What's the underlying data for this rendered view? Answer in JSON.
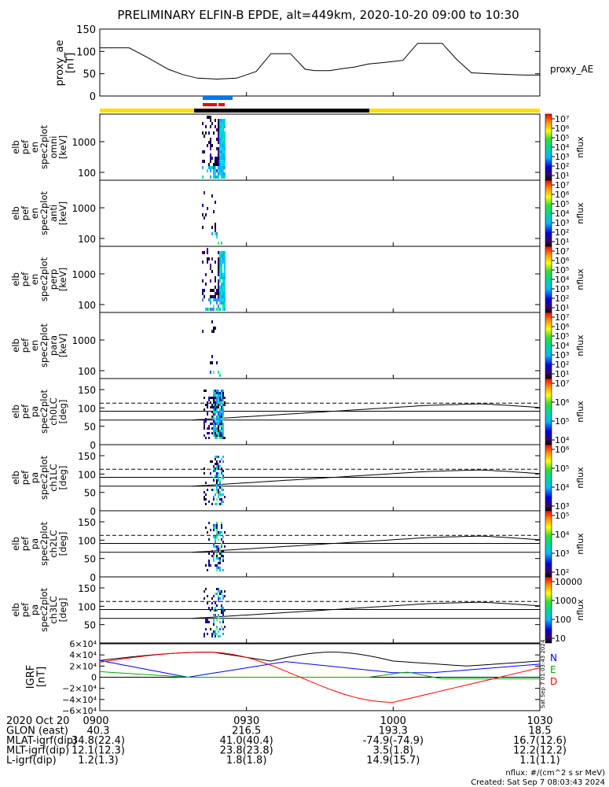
{
  "title": "PRELIMINARY ELFIN-B EPDE, alt=449km, 2020-10-20 09:00 to 10:30",
  "proxy_ae": {
    "ylabel": "proxy_ae\n[nT]",
    "yticks": [
      "150",
      "100",
      "50",
      "0"
    ],
    "legend": "proxy_AE"
  },
  "spec_panels": [
    {
      "ylabel": "elb\npef\nen\nspec2plot\nomni\n[keV]",
      "yticks": [
        "1000",
        "100"
      ],
      "cb_ticks": [
        "10⁷",
        "10⁶",
        "10⁵",
        "10⁴",
        "10³",
        "10²",
        "10¹"
      ]
    },
    {
      "ylabel": "elb\npef\nen\nspec2plot\nanti\n[keV]",
      "yticks": [
        "1000",
        "100"
      ],
      "cb_ticks": [
        "10⁷",
        "10⁶",
        "10⁵",
        "10⁴",
        "10³",
        "10²",
        "10¹"
      ]
    },
    {
      "ylabel": "elb\npef\nen\nspec2plot\nperp\n[keV]",
      "yticks": [
        "1000",
        "100"
      ],
      "cb_ticks": [
        "10⁷",
        "10⁶",
        "10⁵",
        "10⁴",
        "10³",
        "10²",
        "10¹"
      ]
    },
    {
      "ylabel": "elb\npef\nen\nspec2plot\npara\n[keV]",
      "yticks": [
        "1000",
        "100"
      ],
      "cb_ticks": [
        "10⁷",
        "10⁶",
        "10⁵",
        "10⁴",
        "10³",
        "10²",
        "10¹"
      ]
    }
  ],
  "pa_panels": [
    {
      "ylabel": "elb\npef\npa\nspec2plot\nch0LC\n[deg]",
      "yticks": [
        "150",
        "100",
        "50",
        "0"
      ],
      "cb_ticks": [
        "10⁷",
        "10⁶",
        "10⁵",
        "10⁴"
      ]
    },
    {
      "ylabel": "elb\npef\npa\nspec2plot\nch1LC\n[deg]",
      "yticks": [
        "150",
        "100",
        "50",
        "0"
      ],
      "cb_ticks": [
        "10⁶",
        "10⁵",
        "10⁴",
        "10³"
      ]
    },
    {
      "ylabel": "elb\npef\npa\nspec2plot\nch2LC\n[deg]",
      "yticks": [
        "150",
        "100",
        "50",
        "0"
      ],
      "cb_ticks": [
        "10⁵",
        "10⁴",
        "10³",
        "10²"
      ]
    },
    {
      "ylabel": "elb\npef\npa\nspec2plot\nch3LC\n[deg]",
      "yticks": [
        "150",
        "100",
        "50"
      ],
      "cb_ticks": [
        "10000",
        "1000",
        "100",
        "10"
      ]
    }
  ],
  "cb_label": "nflux",
  "igrf": {
    "ylabel": "IGRF\n[nT]",
    "yticks": [
      "6×10⁴",
      "4×10⁴",
      "2×10⁴",
      "0",
      "−2×10⁴",
      "−4×10⁴",
      "−6×10⁴"
    ],
    "legend": [
      {
        "label": "N",
        "color": "#0000ff"
      },
      {
        "label": "E",
        "color": "#00aa00"
      },
      {
        "label": "D",
        "color": "#ff0000"
      }
    ],
    "stamp": "Sat Sep 7 01:03:43 2024"
  },
  "footer": {
    "rows": [
      [
        "2020 Oct 20",
        "0900",
        "0930",
        "1000",
        "1030"
      ],
      [
        "GLON (east)",
        "40.3",
        "216.5",
        "193.3",
        "18.5"
      ],
      [
        "MLAT-igrf(dip)",
        "34.8(22.4)",
        "41.0(40.4)",
        "-74.9(-74.9)",
        "16.7(12.6)"
      ],
      [
        "MLT-igrf(dip)",
        "12.1(12.3)",
        "23.8(23.8)",
        "3.5(1.8)",
        "12.2(12.2)"
      ],
      [
        "L-igrf(dip)",
        "1.2(1.3)",
        "1.8(1.8)",
        "14.9(15.7)",
        "1.1(1.1)"
      ]
    ],
    "units": "nflux: #/(cm^2 s sr MeV)",
    "created": "Created: Sat Sep  7 08:03:43 2024"
  },
  "chart_data": {
    "type": "line",
    "title": "PRELIMINARY ELFIN-B EPDE, alt=449km, 2020-10-20 09:00 to 10:30",
    "x_ticks": [
      "0900",
      "0930",
      "1000",
      "1030"
    ],
    "xlim_minutes": [
      0,
      90
    ],
    "proxy_ae": {
      "name": "proxy_AE",
      "ylim": [
        0,
        150
      ],
      "x": [
        0,
        3,
        6,
        10,
        14,
        17,
        20,
        24,
        28,
        32,
        35,
        37,
        39,
        42,
        44,
        47,
        50,
        52,
        55,
        58,
        62,
        65,
        67,
        70,
        73,
        76,
        80,
        84,
        87,
        90
      ],
      "y": [
        108,
        108,
        108,
        85,
        60,
        48,
        40,
        38,
        40,
        55,
        95,
        95,
        95,
        60,
        57,
        57,
        62,
        65,
        72,
        75,
        80,
        118,
        118,
        118,
        82,
        52,
        50,
        48,
        47,
        47
      ]
    },
    "energy_axis": {
      "scale": "log",
      "ticks": [
        100,
        1000
      ]
    },
    "pitch_angle_axis": {
      "ylim": [
        0,
        180
      ],
      "loss_cone_lines": [
        67,
        91,
        113
      ],
      "trap_curve_peak_deg": 112
    },
    "igrf": {
      "ylim": [
        -60000,
        60000
      ],
      "series": [
        {
          "name": "N",
          "color": "#0000ff"
        },
        {
          "name": "E",
          "color": "#00aa00"
        },
        {
          "name": "D",
          "color": "#ff0000"
        }
      ]
    }
  }
}
